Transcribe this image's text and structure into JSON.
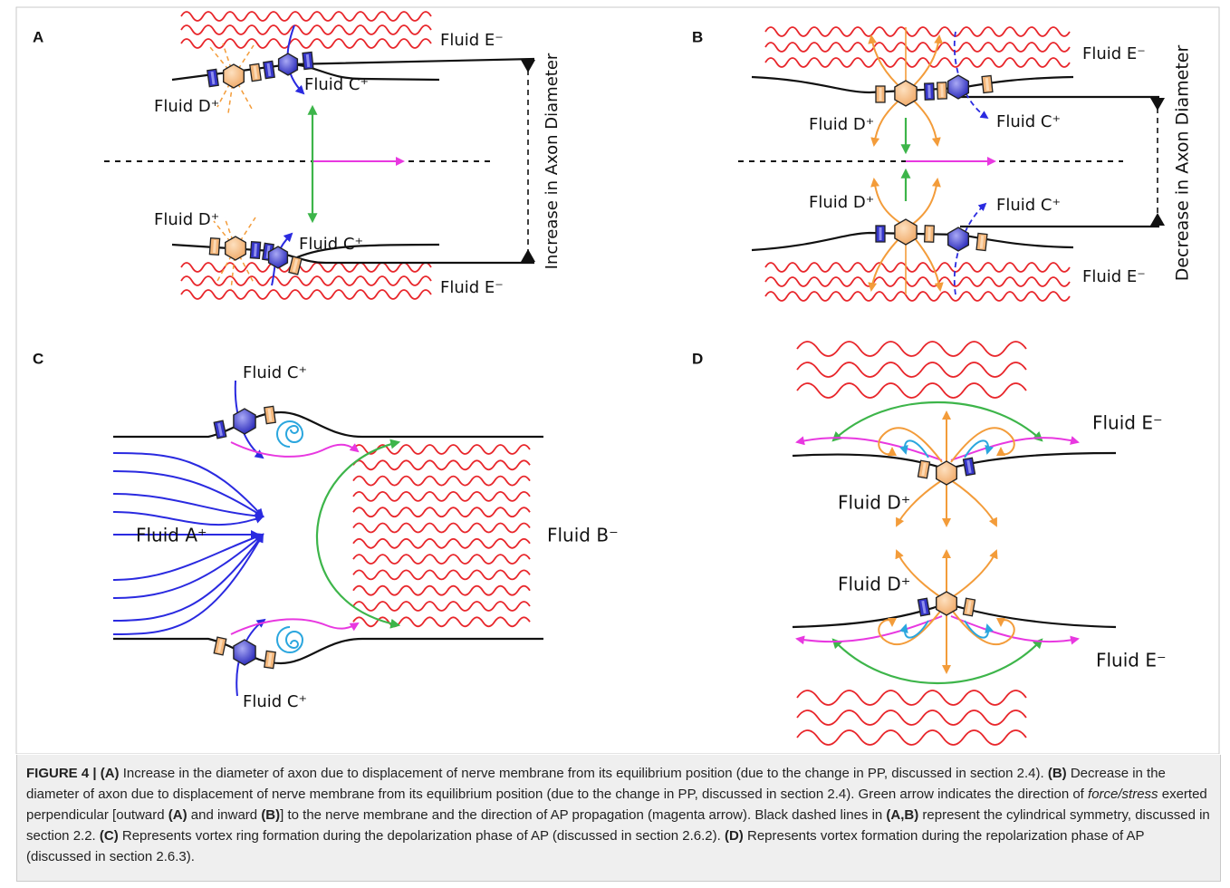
{
  "panels": [
    {
      "label": "A",
      "texts": [
        "Fluid E⁻",
        "Fluid D⁺",
        "Fluid C⁺",
        "Fluid D⁺",
        "Fluid C⁺",
        "Fluid E⁻",
        "Increase in Axon Diameter"
      ]
    },
    {
      "label": "B",
      "texts": [
        "Fluid E⁻",
        "Fluid D⁺",
        "Fluid C⁺",
        "Fluid D⁺",
        "Fluid C⁺",
        "Fluid E⁻",
        "Decrease in Axon Diameter"
      ]
    },
    {
      "label": "C",
      "texts": [
        "Fluid C⁺",
        "Fluid A⁺",
        "Fluid B⁻",
        "Fluid C⁺"
      ]
    },
    {
      "label": "D",
      "texts": [
        "Fluid E⁻",
        "Fluid D⁺",
        "Fluid D⁺",
        "Fluid E⁻"
      ]
    }
  ],
  "caption": [
    "FIGURE 4 | (A)",
    " Increase in the diameter of axon due to displacement of nerve membrane from its equilibrium position (due to the change in PP, discussed in section 2.4). ",
    "(B)",
    " Decrease in the diameter of axon due to displacement of nerve membrane from its equilibrium position (due to the change in PP, discussed in section 2.4). Green arrow indicates the direction of ",
    "force/stress",
    " exerted perpendicular [outward ",
    "(A)",
    " and inward ",
    "(B)",
    "] to the nerve membrane and the direction of AP propagation (magenta arrow). Black dashed lines in ",
    "(A,B)",
    " represent the cylindrical symmetry, discussed in section 2.2. ",
    "(C)",
    " Represents vortex ring formation during the depolarization phase of AP (discussed in section 2.6.2). ",
    "(D)",
    " Represents vortex formation during the repolarization phase of AP (discussed in section 2.6.3)."
  ]
}
